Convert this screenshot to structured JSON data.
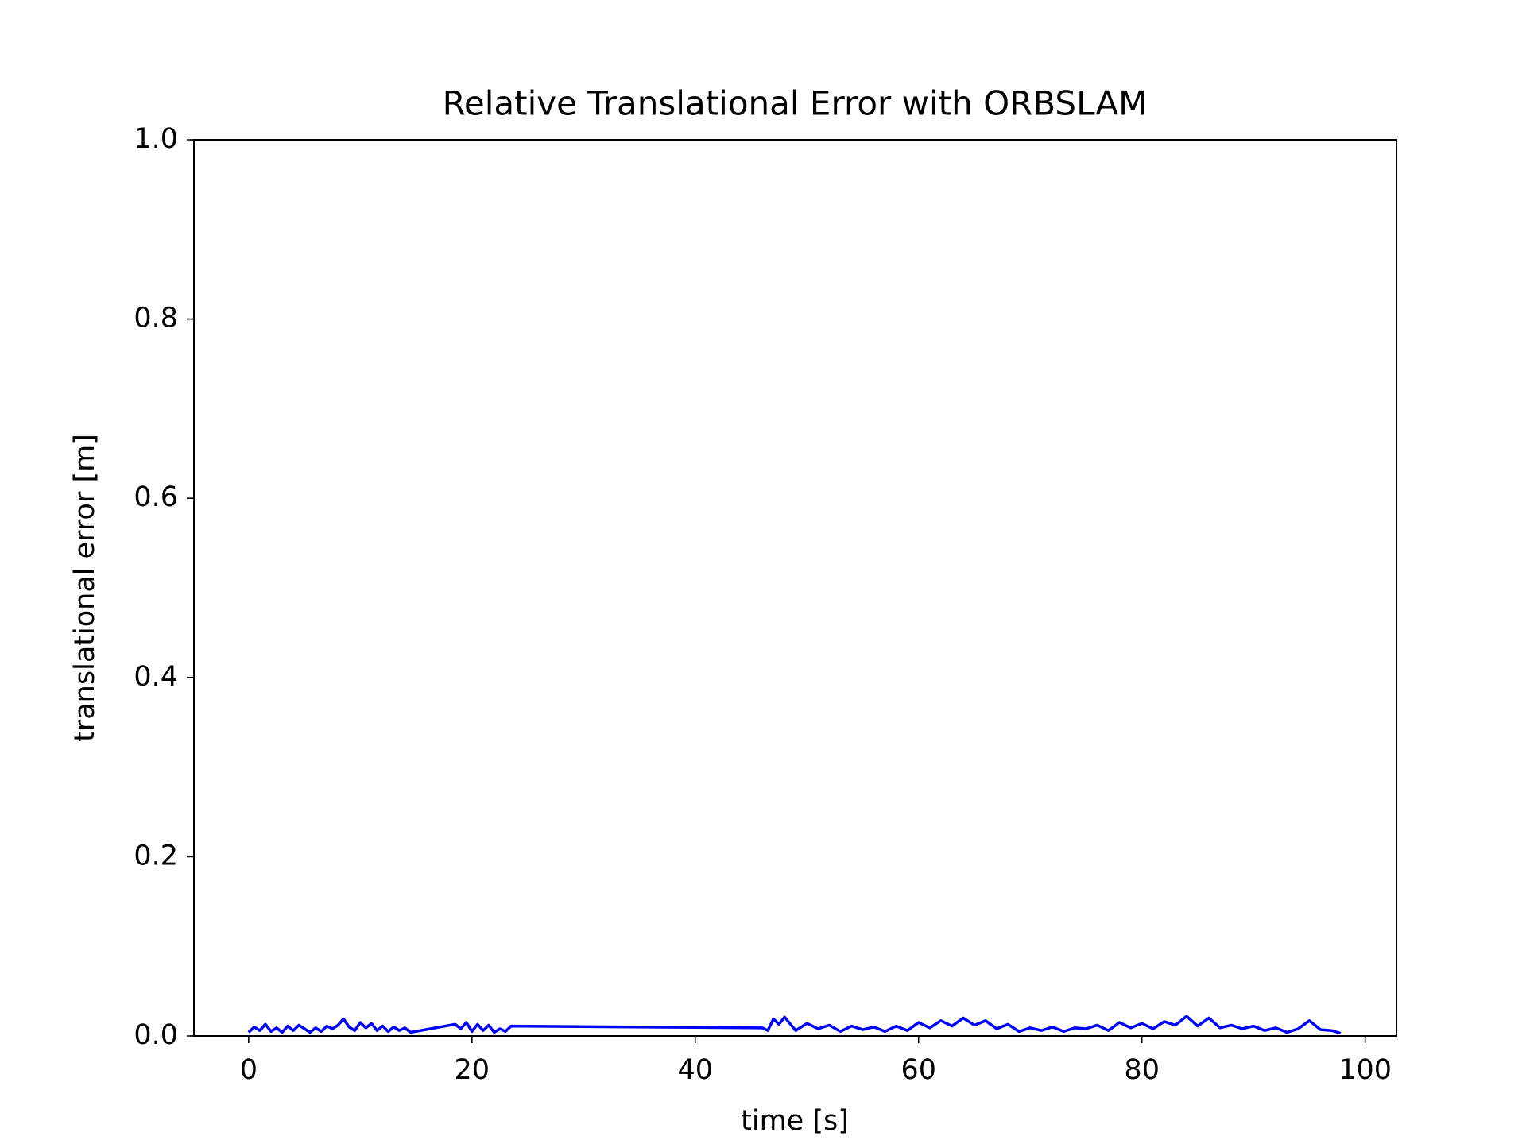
{
  "chart_data": {
    "type": "line",
    "title": "Relative Translational Error with ORBSLAM",
    "xlabel": "time [s]",
    "ylabel": "translational error [m]",
    "color": "#0000ff",
    "x": [
      0,
      0.5,
      1,
      1.5,
      2,
      2.5,
      3,
      3.5,
      4,
      4.5,
      5,
      5.5,
      6,
      6.5,
      7,
      7.5,
      8,
      8.5,
      9,
      9.5,
      10,
      10.5,
      11,
      11.5,
      12,
      12.5,
      13,
      13.5,
      14,
      14.5,
      18.5,
      19,
      19.5,
      20,
      20.5,
      21,
      21.5,
      22,
      22.5,
      23,
      23.5,
      46,
      46.5,
      47,
      47.5,
      48,
      49,
      50,
      51,
      52,
      53,
      54,
      55,
      56,
      57,
      58,
      59,
      60,
      61,
      62,
      63,
      64,
      65,
      66,
      67,
      68,
      69,
      70,
      71,
      72,
      73,
      74,
      75,
      76,
      77,
      78,
      79,
      80,
      81,
      82,
      83,
      84,
      85,
      86,
      87,
      88,
      89,
      90,
      91,
      92,
      93,
      94,
      95,
      96,
      97,
      97.8
    ],
    "values": [
      0.004,
      0.01,
      0.006,
      0.013,
      0.005,
      0.009,
      0.004,
      0.011,
      0.006,
      0.012,
      0.008,
      0.004,
      0.009,
      0.005,
      0.011,
      0.008,
      0.012,
      0.019,
      0.01,
      0.006,
      0.015,
      0.009,
      0.014,
      0.006,
      0.011,
      0.005,
      0.01,
      0.006,
      0.009,
      0.004,
      0.013,
      0.008,
      0.015,
      0.005,
      0.013,
      0.006,
      0.012,
      0.004,
      0.008,
      0.005,
      0.011,
      0.009,
      0.006,
      0.019,
      0.013,
      0.021,
      0.006,
      0.014,
      0.008,
      0.012,
      0.005,
      0.011,
      0.007,
      0.01,
      0.005,
      0.011,
      0.006,
      0.015,
      0.009,
      0.017,
      0.011,
      0.02,
      0.012,
      0.017,
      0.008,
      0.013,
      0.005,
      0.009,
      0.006,
      0.01,
      0.005,
      0.009,
      0.008,
      0.012,
      0.006,
      0.015,
      0.009,
      0.014,
      0.008,
      0.016,
      0.012,
      0.022,
      0.011,
      0.02,
      0.009,
      0.012,
      0.008,
      0.011,
      0.006,
      0.009,
      0.004,
      0.008,
      0.017,
      0.007,
      0.006,
      0.003
    ],
    "xlim": [
      -4.9,
      102.8
    ],
    "ylim": [
      0,
      1
    ],
    "xticks": [
      0,
      20,
      40,
      60,
      80,
      100
    ],
    "yticks": [
      {
        "value": 0,
        "label": "0.0"
      },
      0.2,
      0.4,
      0.6,
      0.8,
      {
        "value": 1,
        "label": "1.0"
      }
    ]
  }
}
